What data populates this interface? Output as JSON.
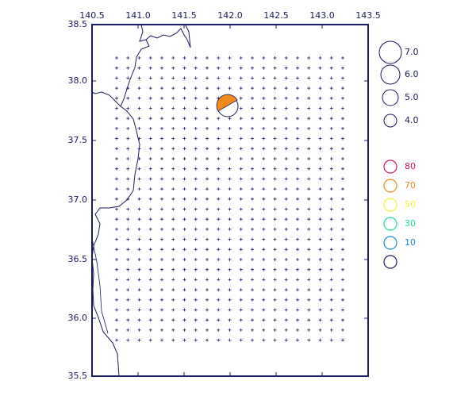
{
  "map": {
    "xticks": [
      "140.5",
      "141.0",
      "141.5",
      "142.0",
      "142.5",
      "143.0",
      "143.5"
    ],
    "yticks": [
      "35.5",
      "36.0",
      "36.5",
      "37.0",
      "37.5",
      "38.0",
      "38.5"
    ],
    "magnitude_legend": [
      "7.0",
      "6.0",
      "5.0",
      "4.0"
    ],
    "depth_legend": [
      {
        "label": "80",
        "color": "#d4145a"
      },
      {
        "label": "70",
        "color": "#f08a1c"
      },
      {
        "label": "50",
        "color": "#f2f230"
      },
      {
        "label": "30",
        "color": "#22e090"
      },
      {
        "label": "10",
        "color": "#1a8ae0"
      },
      {
        "color": "#1a1a66"
      }
    ]
  }
}
